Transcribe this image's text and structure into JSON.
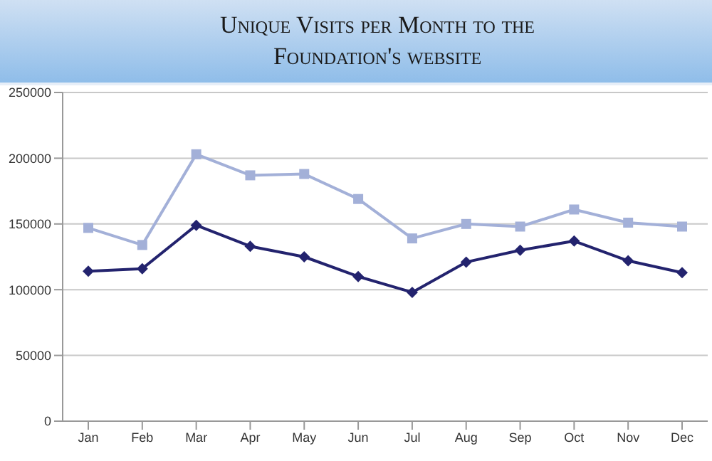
{
  "chart_data": {
    "type": "line",
    "title": "Unique Visits per Month to the Foundation's website",
    "categories": [
      "Jan",
      "Feb",
      "Mar",
      "Apr",
      "May",
      "Jun",
      "Jul",
      "Aug",
      "Sep",
      "Oct",
      "Nov",
      "Dec"
    ],
    "series": [
      {
        "color": "#a3b0d8",
        "marker": "square",
        "values": [
          147000,
          134000,
          203000,
          187000,
          188000,
          169000,
          139000,
          150000,
          148000,
          161000,
          151000,
          148000
        ]
      },
      {
        "color": "#23236e",
        "marker": "diamond",
        "values": [
          114000,
          116000,
          149000,
          133000,
          125000,
          110000,
          98000,
          121000,
          130000,
          137000,
          122000,
          113000
        ]
      }
    ],
    "ylim": [
      0,
      250000
    ],
    "yticks": [
      0,
      50000,
      100000,
      150000,
      200000,
      250000
    ],
    "grid": "y",
    "legend": false
  }
}
